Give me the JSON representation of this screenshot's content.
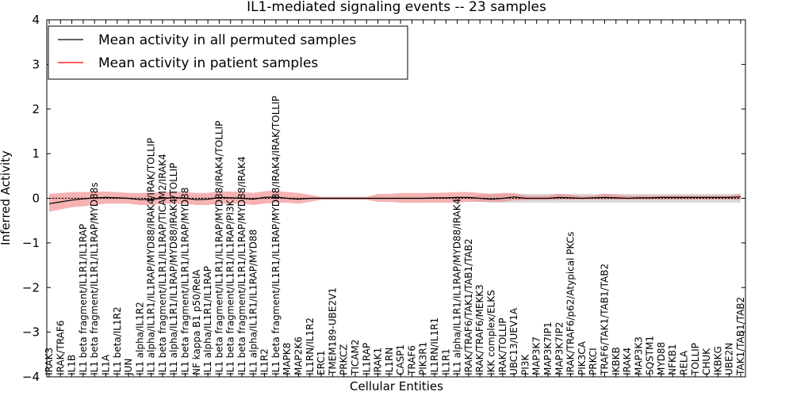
{
  "chart_data": {
    "type": "line",
    "title": "IL1-mediated signaling events -- 23 samples",
    "xlabel": "Cellular Entities",
    "ylabel": "Inferred Activity",
    "ylim": [
      -4,
      4
    ],
    "yticks": [
      4,
      3,
      2,
      1,
      0,
      -1,
      -2,
      -3,
      -4
    ],
    "ytick_labels": [
      "4",
      "3",
      "2",
      "1",
      "0",
      "−1",
      "−2",
      "−3",
      "−4"
    ],
    "legend_position": "top-left",
    "categories": [
      "IRAK3",
      "IRAK/TRAF6",
      "IL1B",
      "IL1 beta fragment/IL1R1/IL1RAP",
      "IL1 beta fragment/IL1R1/IL1RAP/MYD88s",
      "IL1A",
      "IL1 beta/IL1R2",
      "JUN",
      "IL1 alpha/IL1R2",
      "IL1 alpha/IL1R1/IL1RAP/MYD88/IRAK4/IRAK/TOLLIP",
      "IL1 beta fragment/IL1R1/IL1RAP/TICAM2/IRAK4",
      "IL1 alpha/IL1R1/IL1RAP/MYD88/IRAK4/TOLLIP",
      "IL1 beta fragment/IL1R1/IL1RAP/MYD88",
      "NF kappa B1 p50/RelA",
      "IL1 alpha/IL1R1/IL1RAP",
      "IL1 beta fragment/IL1R1/IL1RAP/MYD88/IRAK4/TOLLIP",
      "IL1 beta fragment/IL1R1/IL1RAP/PI3K",
      "IL1 beta fragment/IL1R1/IL1RAP/MYD88/IRAK4",
      "IL1 alpha/IL1R1/IL1RAP/MYD88",
      "IL1R2",
      "IL1 beta fragment/IL1R1/IL1RAP/MYD88/IRAK4/IRAK/TOLLIP",
      "MAPK8",
      "MAP2K6",
      "IL1RN/IL1R2",
      "ERC1",
      "TMEM189-UBE2V1",
      "PRKCZ",
      "TICAM2",
      "IL1RAP",
      "IRAK1",
      "IL1RN",
      "CASP1",
      "TRAF6",
      "PIK3R1",
      "IL1RN/IL1R1",
      "IL1R1",
      "IL1 alpha/IL1R1/IL1RAP/MYD88/IRAK4",
      "IRAK/TRAF6/TAK1/TAB1/TAB2",
      "IRAK/TRAF6/MEKK3",
      "IKK complex/ELKS",
      "IRAK/TOLLIP",
      "UBC13/UEV1A",
      "PI3K",
      "MAP3K7",
      "MAP3K7IP1",
      "MAP3K7IP2",
      "IRAK/TRAF6/p62/Atypical PKCs",
      "PIK3CA",
      "PRKCI",
      "TRAF6/TAK1/TAB1/TAB2",
      "IKBKB",
      "IRAK4",
      "MAP3K3",
      "SQSTM1",
      "MYD88",
      "NFKB1",
      "RELA",
      "TOLLIP",
      "CHUK",
      "IKBKG",
      "UBE2N",
      "TAK1/TAB1/TAB2"
    ],
    "series": [
      {
        "name": "Mean activity in all permuted samples",
        "color": "#000000",
        "style": "dashed",
        "band_color": "#cccccc",
        "values": [
          0.0,
          0.0,
          0.0,
          0.0,
          0.0,
          0.0,
          0.0,
          0.0,
          0.0,
          0.0,
          0.0,
          0.0,
          0.0,
          0.0,
          0.0,
          0.0,
          0.0,
          0.0,
          0.0,
          0.0,
          0.0,
          0.0,
          0.0,
          0.0,
          0.0,
          0.0,
          0.0,
          0.0,
          0.0,
          0.0,
          0.0,
          0.0,
          0.0,
          0.0,
          0.0,
          0.0,
          0.0,
          0.0,
          0.0,
          0.0,
          0.0,
          0.0,
          0.0,
          0.0,
          0.0,
          0.0,
          0.0,
          0.0,
          0.0,
          0.0,
          0.0,
          0.0,
          0.0,
          0.0,
          0.0,
          0.0,
          0.0,
          0.0,
          0.0,
          0.0,
          0.0,
          0.0
        ],
        "lower": [
          -0.03,
          -0.03,
          -0.03,
          -0.03,
          -0.03,
          -0.03,
          -0.03,
          -0.03,
          -0.03,
          -0.03,
          -0.03,
          -0.03,
          -0.03,
          -0.03,
          -0.03,
          -0.03,
          -0.03,
          -0.03,
          -0.03,
          -0.03,
          -0.03,
          -0.03,
          -0.03,
          -0.03,
          -0.03,
          -0.03,
          -0.03,
          -0.03,
          -0.03,
          -0.03,
          -0.03,
          -0.03,
          -0.03,
          -0.03,
          -0.03,
          -0.03,
          -0.03,
          -0.03,
          -0.08,
          -0.1,
          -0.1,
          -0.1,
          -0.1,
          -0.1,
          -0.1,
          -0.1,
          -0.1,
          -0.1,
          -0.1,
          -0.1,
          -0.1,
          -0.1,
          -0.1,
          -0.1,
          -0.1,
          -0.1,
          -0.1,
          -0.1,
          -0.1,
          -0.1,
          -0.1,
          -0.1
        ],
        "upper": [
          0.03,
          0.03,
          0.03,
          0.03,
          0.03,
          0.03,
          0.03,
          0.03,
          0.03,
          0.03,
          0.03,
          0.03,
          0.03,
          0.03,
          0.03,
          0.03,
          0.03,
          0.03,
          0.03,
          0.03,
          0.03,
          0.03,
          0.03,
          0.03,
          0.03,
          0.03,
          0.03,
          0.03,
          0.03,
          0.03,
          0.03,
          0.03,
          0.03,
          0.03,
          0.03,
          0.03,
          0.03,
          0.03,
          0.08,
          0.1,
          0.1,
          0.1,
          0.1,
          0.1,
          0.1,
          0.1,
          0.1,
          0.1,
          0.1,
          0.1,
          0.1,
          0.1,
          0.1,
          0.1,
          0.1,
          0.1,
          0.1,
          0.1,
          0.1,
          0.1,
          0.1,
          0.1
        ]
      },
      {
        "name": "Mean activity in patient samples",
        "color": "#ff0000",
        "style": "solid",
        "line_color": "#000000",
        "band_color": "#f08080",
        "values": [
          -0.12,
          -0.08,
          -0.04,
          -0.01,
          0.01,
          0.02,
          0.01,
          0.0,
          -0.03,
          -0.02,
          0.0,
          0.02,
          0.0,
          -0.03,
          -0.02,
          0.02,
          0.01,
          0.0,
          -0.02,
          0.02,
          0.03,
          0.0,
          -0.02,
          0.0,
          0.0,
          0.0,
          0.0,
          0.0,
          0.0,
          0.0,
          0.0,
          0.0,
          0.0,
          0.0,
          0.01,
          0.01,
          0.02,
          0.02,
          0.0,
          -0.02,
          0.0,
          0.03,
          0.0,
          0.0,
          0.0,
          0.02,
          0.01,
          0.0,
          0.01,
          0.02,
          0.01,
          0.0,
          0.01,
          0.01,
          0.02,
          0.02,
          0.02,
          0.02,
          0.02,
          0.02,
          0.02,
          0.03
        ],
        "lower": [
          -0.3,
          -0.25,
          -0.2,
          -0.18,
          -0.15,
          -0.12,
          -0.12,
          -0.12,
          -0.15,
          -0.15,
          -0.12,
          -0.12,
          -0.12,
          -0.15,
          -0.15,
          -0.12,
          -0.12,
          -0.12,
          -0.15,
          -0.12,
          -0.1,
          -0.1,
          -0.12,
          -0.08,
          -0.03,
          -0.03,
          -0.03,
          -0.03,
          -0.03,
          -0.08,
          -0.08,
          -0.1,
          -0.1,
          -0.1,
          -0.1,
          -0.1,
          -0.1,
          -0.08,
          -0.08,
          -0.08,
          -0.08,
          -0.05,
          -0.04,
          -0.04,
          -0.04,
          -0.03,
          -0.03,
          -0.03,
          -0.03,
          -0.03,
          -0.03,
          -0.03,
          -0.03,
          -0.03,
          -0.03,
          -0.03,
          -0.03,
          -0.03,
          -0.03,
          -0.03,
          -0.03,
          -0.03
        ],
        "upper": [
          0.1,
          0.12,
          0.14,
          0.14,
          0.15,
          0.15,
          0.14,
          0.12,
          0.12,
          0.13,
          0.14,
          0.16,
          0.14,
          0.12,
          0.12,
          0.16,
          0.15,
          0.14,
          0.12,
          0.16,
          0.17,
          0.14,
          0.12,
          0.08,
          0.03,
          0.03,
          0.03,
          0.03,
          0.03,
          0.1,
          0.1,
          0.12,
          0.12,
          0.12,
          0.12,
          0.13,
          0.14,
          0.14,
          0.12,
          0.1,
          0.12,
          0.12,
          0.06,
          0.06,
          0.06,
          0.1,
          0.08,
          0.05,
          0.06,
          0.1,
          0.08,
          0.06,
          0.06,
          0.06,
          0.06,
          0.06,
          0.06,
          0.06,
          0.06,
          0.06,
          0.06,
          0.1
        ]
      }
    ]
  }
}
